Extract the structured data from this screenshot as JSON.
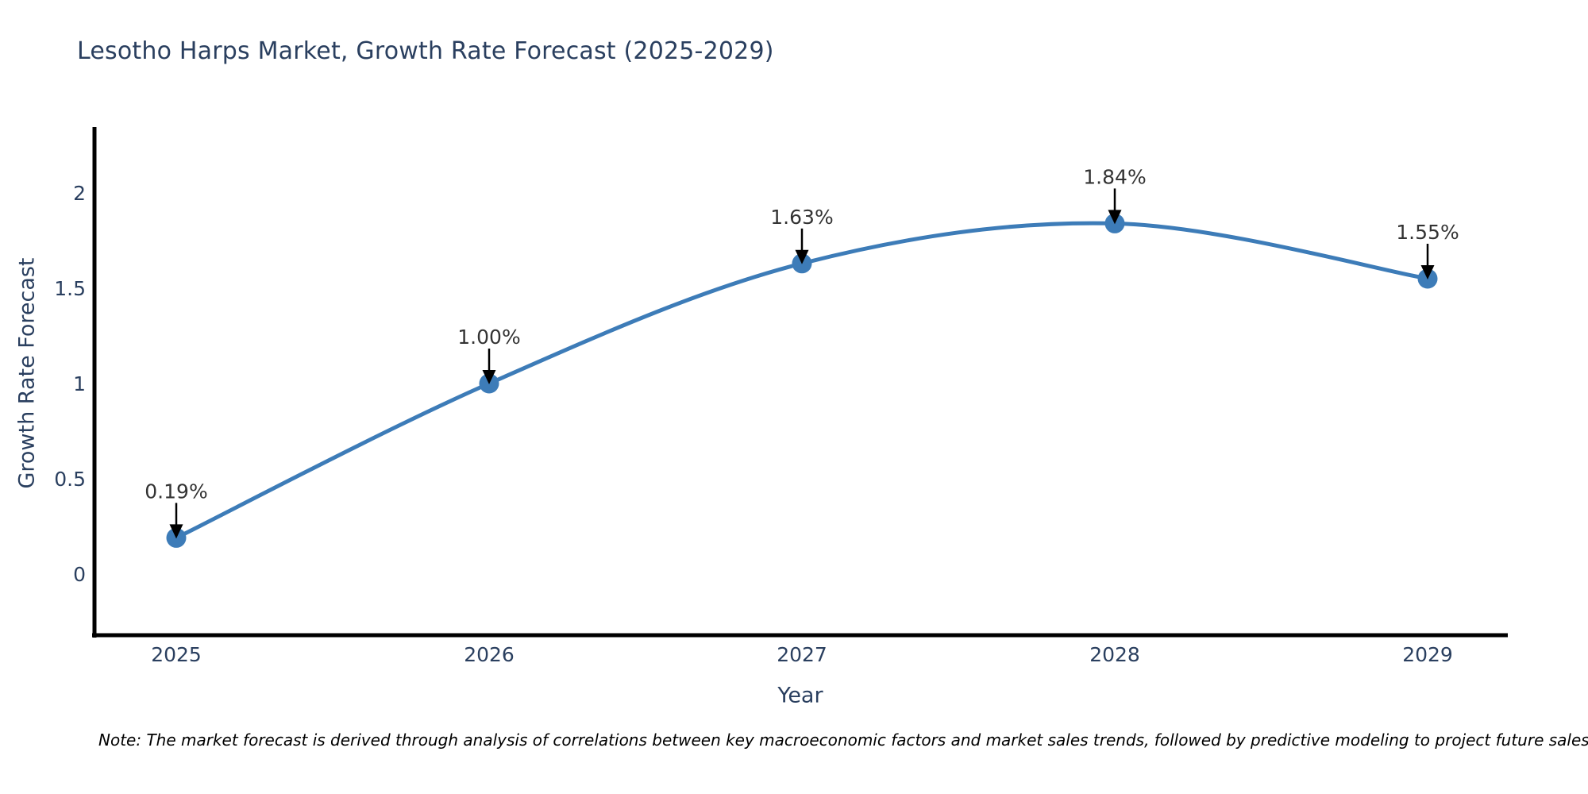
{
  "chart_data": {
    "type": "line",
    "title": "Lesotho Harps Market, Growth Rate Forecast (2025-2029)",
    "xlabel": "Year",
    "ylabel": "Growth Rate Forecast",
    "x": [
      2025,
      2026,
      2027,
      2028,
      2029
    ],
    "series": [
      {
        "name": "Growth Rate Forecast",
        "values": [
          0.19,
          1.0,
          1.63,
          1.84,
          1.55
        ]
      }
    ],
    "point_labels": [
      "0.19%",
      "1.00%",
      "1.63%",
      "1.84%",
      "1.55%"
    ],
    "xtick_labels": [
      "2025",
      "2026",
      "2027",
      "2028",
      "2029"
    ],
    "yticks": [
      0,
      0.5,
      1,
      1.5,
      2
    ],
    "ytick_labels": [
      "0",
      "0.5",
      "1",
      "1.5",
      "2"
    ],
    "xlim": [
      2024.74,
      2029.26
    ],
    "ylim": [
      -0.33,
      2.35
    ],
    "grid": false,
    "legend": false,
    "line_shape": "spline",
    "annotation_style": "down-arrow",
    "colors": {
      "line": "#3d7cb8",
      "marker": "#3d7cb8",
      "axis": "#000000",
      "tick_text": "#2a3f5f",
      "annotation_text": "#333333",
      "arrow": "#000000"
    }
  },
  "note": {
    "text": "Note: The market forecast is derived through analysis of correlations between key macroeconomic factors and market sales trends, followed by predictive modeling to project future sales"
  }
}
